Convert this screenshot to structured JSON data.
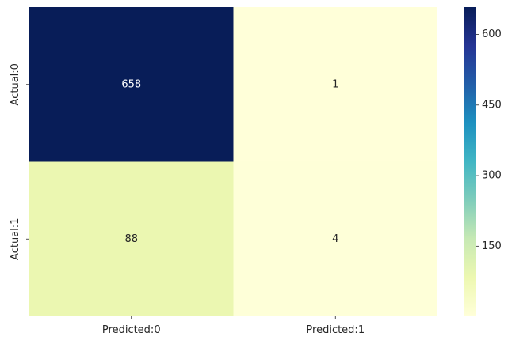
{
  "chart_data": {
    "type": "heatmap",
    "x_categories": [
      "Predicted:0",
      "Predicted:1"
    ],
    "y_categories": [
      "Actual:0",
      "Actual:1"
    ],
    "values": [
      [
        658,
        1
      ],
      [
        88,
        4
      ]
    ],
    "colormap": "YlGnBu",
    "colorbar": {
      "ticks": [
        150,
        300,
        450,
        600
      ],
      "tick_labels": [
        "150",
        "300",
        "450",
        "600"
      ],
      "range": [
        1,
        658
      ]
    },
    "annotations": true,
    "title": "",
    "xlabel": "",
    "ylabel": ""
  }
}
